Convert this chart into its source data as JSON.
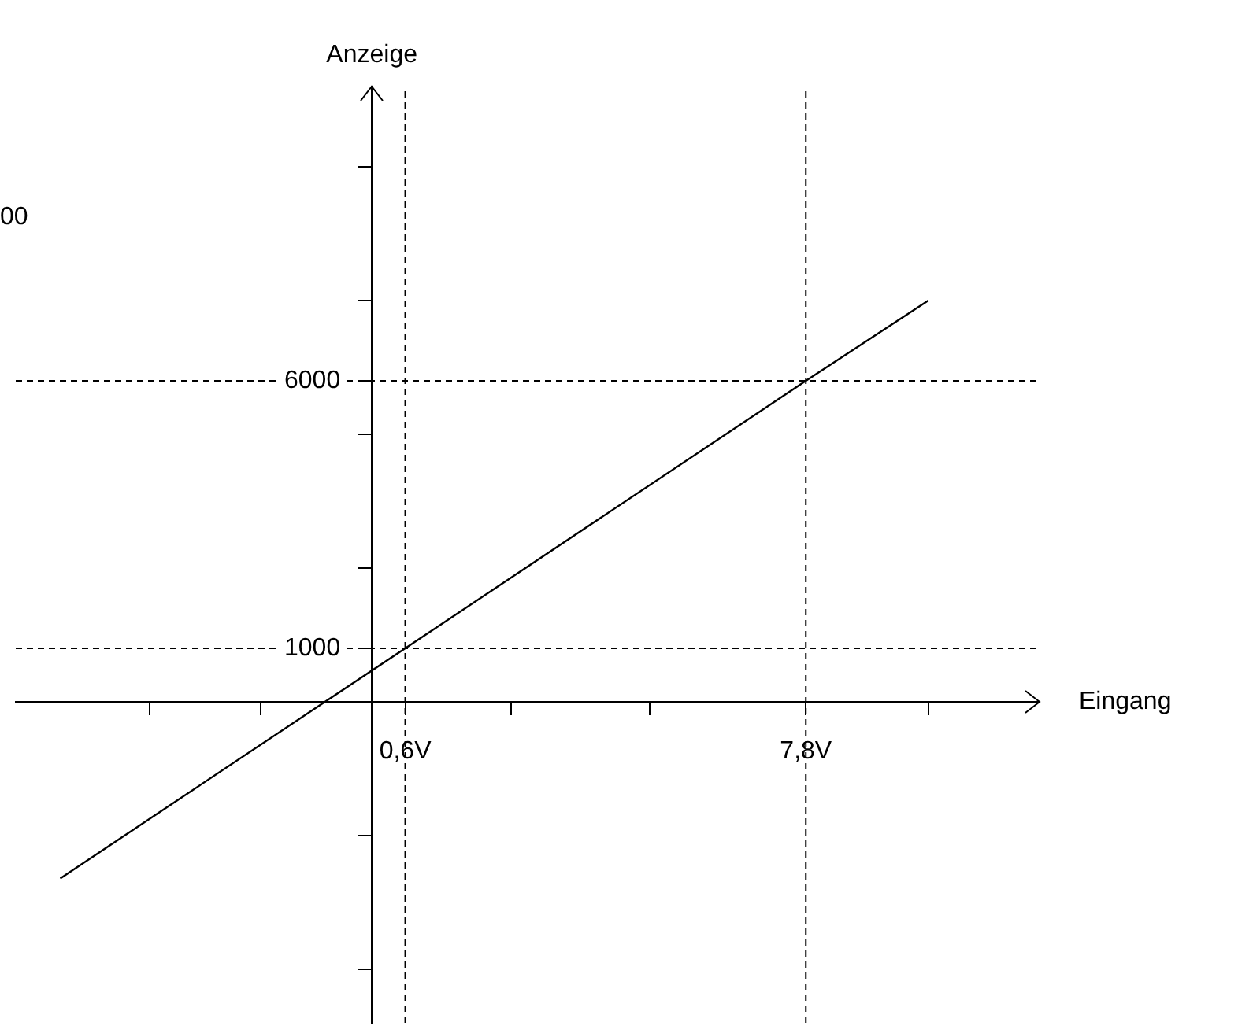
{
  "chart_data": {
    "type": "line",
    "xlabel": "Eingang",
    "ylabel": "Anzeige",
    "x": [
      -5.6,
      0.6,
      7.8,
      10
    ],
    "series": [
      {
        "color": "#000000",
        "values": [
          -3300,
          1000,
          6000,
          7500
        ]
      }
    ],
    "xlim": [
      -6.4,
      12
    ],
    "ylim": [
      -6000,
      11500
    ],
    "xticks": [
      {
        "value": -4,
        "label": null
      },
      {
        "value": -2,
        "label": null
      },
      {
        "value": 0.6,
        "label": "0,6V"
      },
      {
        "value": 2.5,
        "label": null
      },
      {
        "value": 5,
        "label": null
      },
      {
        "value": 7.8,
        "label": "7,8V"
      },
      {
        "value": 10,
        "label": null
      }
    ],
    "yticks": [
      {
        "value": -5000,
        "label": null
      },
      {
        "value": -2500,
        "label": null
      },
      {
        "value": 1000,
        "label": "1000"
      },
      {
        "value": 2500,
        "label": null
      },
      {
        "value": 5000,
        "label": null
      },
      {
        "value": 6000,
        "label": "6000"
      },
      {
        "value": 7500,
        "label": null
      },
      {
        "value": 10000,
        "label": null
      }
    ],
    "ref_lines": [
      {
        "axis": "x",
        "value": 0.6,
        "line_style": "dashed"
      },
      {
        "axis": "x",
        "value": 7.8,
        "line_style": "dashed"
      },
      {
        "axis": "y",
        "value": 1000,
        "line_style": "dashed"
      },
      {
        "axis": "y",
        "value": 6000,
        "line_style": "dashed"
      }
    ],
    "annotations": [
      "00"
    ],
    "grid": false,
    "legend": false,
    "marker": "none",
    "line_style": "solid"
  }
}
